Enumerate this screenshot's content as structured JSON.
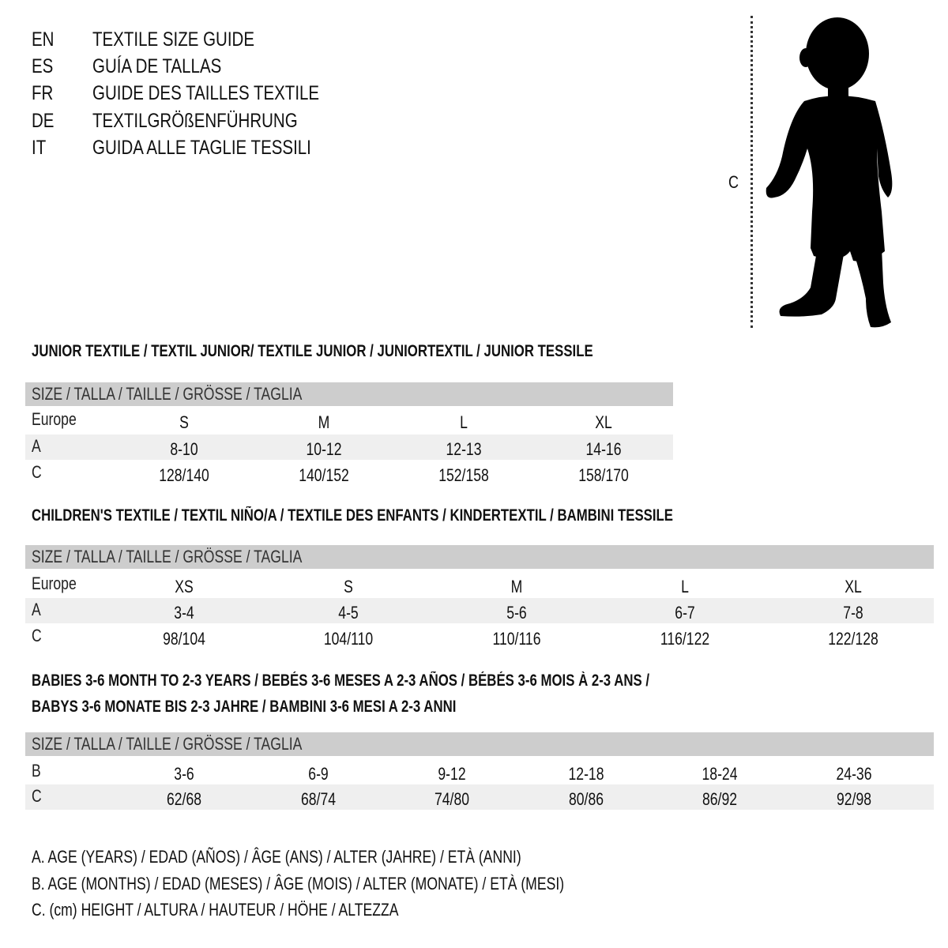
{
  "header": {
    "titles": [
      {
        "lang": "EN",
        "text": "TEXTILE SIZE GUIDE"
      },
      {
        "lang": "ES",
        "text": "GUÍA DE TALLAS"
      },
      {
        "lang": "FR",
        "text": "GUIDE DES TAILLES TEXTILE"
      },
      {
        "lang": "DE",
        "text": "TEXTILGRÖßENFÜHRUNG"
      },
      {
        "lang": "IT",
        "text": "GUIDA ALLE TAGLIE TESSILI"
      }
    ]
  },
  "figure": {
    "measure_label": "C",
    "icon": "child-silhouette"
  },
  "colors": {
    "header_band": "#cdcdcd",
    "shaded_row": "#efefef"
  },
  "tables": [
    {
      "title_lines": [
        "JUNIOR TEXTILE / TEXTIL JUNIOR/ TEXTILE JUNIOR / JUNIORTEXTIL / JUNIOR TESSILE"
      ],
      "header": "SIZE / TALLA / TAILLE / GRÖSSE / TAGLIA",
      "rows": [
        {
          "label": "Europe",
          "values": [
            "S",
            "M",
            "L",
            "XL"
          ]
        },
        {
          "label": "A",
          "values": [
            "8-10",
            "10-12",
            "12-13",
            "14-16"
          ]
        },
        {
          "label": "C",
          "values": [
            "128/140",
            "140/152",
            "152/158",
            "158/170"
          ]
        }
      ]
    },
    {
      "title_lines": [
        "CHILDREN'S TEXTILE / TEXTIL NIÑO/A / TEXTILE DES ENFANTS / KINDERTEXTIL / BAMBINI TESSILE"
      ],
      "header": "SIZE / TALLA / TAILLE / GRÖSSE / TAGLIA",
      "rows": [
        {
          "label": "Europe",
          "values": [
            "XS",
            "S",
            "M",
            "L",
            "XL"
          ]
        },
        {
          "label": "A",
          "values": [
            "3-4",
            "4-5",
            "5-6",
            "6-7",
            "7-8"
          ]
        },
        {
          "label": "C",
          "values": [
            "98/104",
            "104/110",
            "110/116",
            "116/122",
            "122/128"
          ]
        }
      ]
    },
    {
      "title_lines": [
        "BABIES 3-6 MONTH TO 2-3 YEARS / BEBÉS 3-6 MESES A 2-3 AÑOS / BÉBÉS 3-6 MOIS À 2-3 ANS /",
        "BABYS 3-6 MONATE BIS 2-3 JAHRE / BAMBINI 3-6 MESI A 2-3 ANNI"
      ],
      "header": "SIZE / TALLA / TAILLE / GRÖSSE / TAGLIA",
      "rows": [
        {
          "label": "B",
          "values": [
            "3-6",
            "6-9",
            "9-12",
            "12-18",
            "18-24",
            "24-36"
          ]
        },
        {
          "label": "C",
          "values": [
            "62/68",
            "68/74",
            "74/80",
            "80/86",
            "86/92",
            "92/98"
          ]
        }
      ]
    }
  ],
  "legend": [
    "A. AGE (YEARS) / EDAD (AÑOS) / ÂGE (ANS) / ALTER (JAHRE) / ETÀ (ANNI)",
    "B. AGE (MONTHS) / EDAD (MESES) / ÂGE (MOIS) / ALTER (MONATE) / ETÀ (MESI)",
    "C. (cm) HEIGHT / ALTURA / HAUTEUR / HÖHE / ALTEZZA"
  ]
}
